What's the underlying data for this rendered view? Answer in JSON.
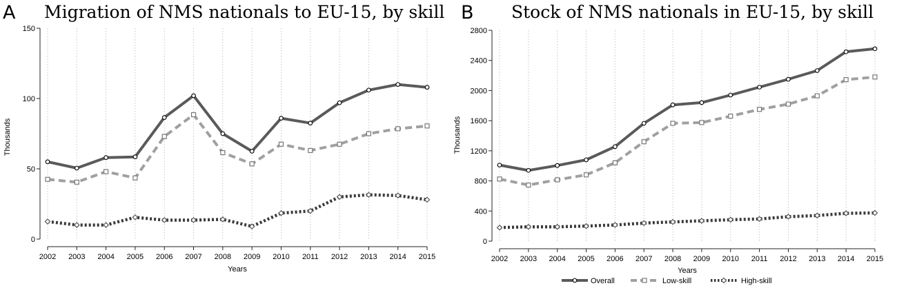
{
  "chart_data": [
    {
      "panel": "A",
      "type": "line",
      "title": "Migration of NMS nationals to EU-15, by skill",
      "xlabel": "Years",
      "ylabel": "Thousands",
      "ylim": [
        0,
        150
      ],
      "yticks": [
        0,
        50,
        100,
        150
      ],
      "x": [
        2002,
        2003,
        2004,
        2005,
        2006,
        2007,
        2008,
        2009,
        2010,
        2011,
        2012,
        2013,
        2014,
        2015
      ],
      "grid": "vertical dotted at each year",
      "series": [
        {
          "name": "Overall",
          "color": "#5a5a5a",
          "style": "solid",
          "marker": "circle",
          "values": [
            55,
            50.5,
            58,
            58.5,
            86.5,
            102,
            75,
            62.5,
            86,
            82.5,
            97,
            106,
            110,
            108
          ]
        },
        {
          "name": "Low-skill",
          "color": "#a0a0a0",
          "style": "dashed",
          "marker": "square",
          "values": [
            42.5,
            40.5,
            48,
            43.5,
            73,
            88.5,
            61.5,
            53.5,
            67.5,
            63,
            67.5,
            75,
            78.5,
            80.5
          ]
        },
        {
          "name": "High-skill",
          "color": "#3a3a3a",
          "style": "dotted",
          "marker": "diamond",
          "values": [
            12.5,
            10,
            10,
            15.5,
            13.5,
            13.5,
            14,
            9,
            18.5,
            20,
            30,
            31.5,
            31,
            28
          ]
        }
      ]
    },
    {
      "panel": "B",
      "type": "line",
      "title": "Stock of NMS nationals in EU-15, by skill",
      "xlabel": "Years",
      "ylabel": "Thousands",
      "ylim": [
        0,
        2800
      ],
      "yticks": [
        0,
        400,
        800,
        1200,
        1600,
        2000,
        2400,
        2800
      ],
      "x": [
        2002,
        2003,
        2004,
        2005,
        2006,
        2007,
        2008,
        2009,
        2010,
        2011,
        2012,
        2013,
        2014,
        2015
      ],
      "grid": "vertical dotted at each year",
      "legend": "bottom-center",
      "series": [
        {
          "name": "Overall",
          "color": "#5a5a5a",
          "style": "solid",
          "marker": "circle",
          "values": [
            1010,
            940,
            1005,
            1080,
            1255,
            1565,
            1810,
            1840,
            1940,
            2045,
            2150,
            2265,
            2515,
            2555
          ]
        },
        {
          "name": "Low-skill",
          "color": "#a0a0a0",
          "style": "dashed",
          "marker": "square",
          "values": [
            825,
            745,
            815,
            880,
            1040,
            1320,
            1565,
            1575,
            1660,
            1750,
            1820,
            1930,
            2145,
            2180
          ]
        },
        {
          "name": "High-skill",
          "color": "#3a3a3a",
          "style": "dotted",
          "marker": "diamond",
          "values": [
            180,
            190,
            190,
            200,
            215,
            240,
            255,
            270,
            285,
            295,
            325,
            340,
            370,
            375
          ]
        }
      ]
    }
  ]
}
